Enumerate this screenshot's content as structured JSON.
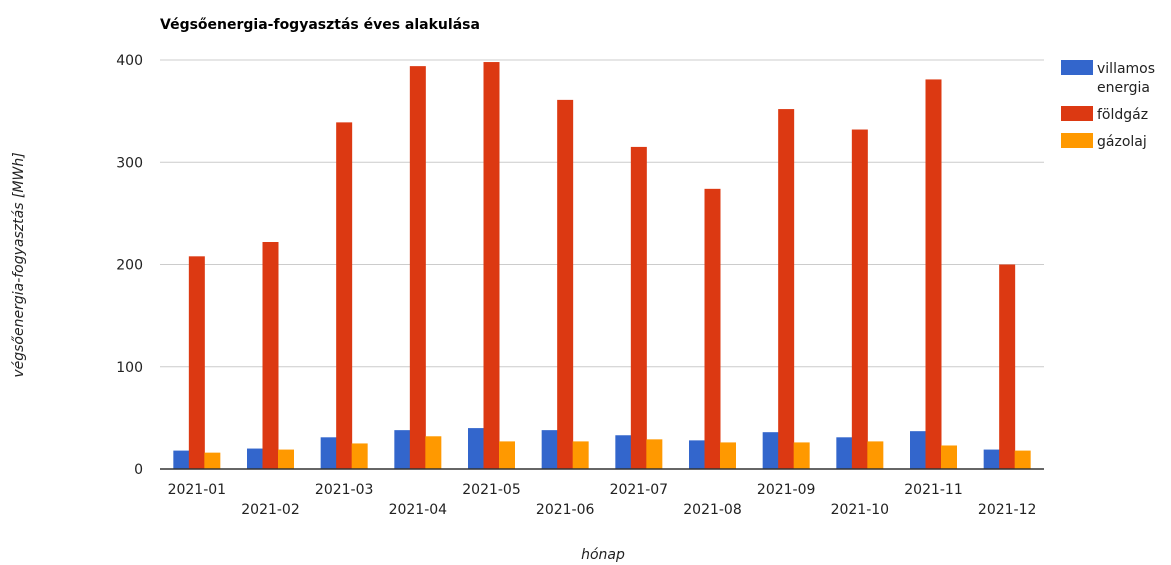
{
  "chart_data": {
    "type": "bar",
    "title": "Végsőenergia-fogyasztás éves alakulása",
    "xlabel": "hónap",
    "ylabel": "végsőenergia-fogyasztás [MWh]",
    "ylim": [
      0,
      400
    ],
    "yticks": [
      0,
      100,
      200,
      300,
      400
    ],
    "grid": true,
    "legend_position": "right",
    "categories": [
      "2021-01",
      "2021-02",
      "2021-03",
      "2021-04",
      "2021-05",
      "2021-06",
      "2021-07",
      "2021-08",
      "2021-09",
      "2021-10",
      "2021-11",
      "2021-12"
    ],
    "series": [
      {
        "name": "villamos energia",
        "legend_lines": [
          "villamos",
          "energia"
        ],
        "color": "#3366cc",
        "values": [
          18,
          20,
          31,
          38,
          40,
          38,
          33,
          28,
          36,
          31,
          37,
          19
        ]
      },
      {
        "name": "földgáz",
        "legend_lines": [
          "földgáz"
        ],
        "color": "#dc3912",
        "values": [
          208,
          222,
          339,
          394,
          398,
          361,
          315,
          274,
          352,
          332,
          381,
          200
        ]
      },
      {
        "name": "gázolaj",
        "legend_lines": [
          "gázolaj"
        ],
        "color": "#ff9900",
        "values": [
          16,
          19,
          25,
          32,
          27,
          27,
          29,
          26,
          26,
          27,
          23,
          18
        ]
      }
    ]
  }
}
